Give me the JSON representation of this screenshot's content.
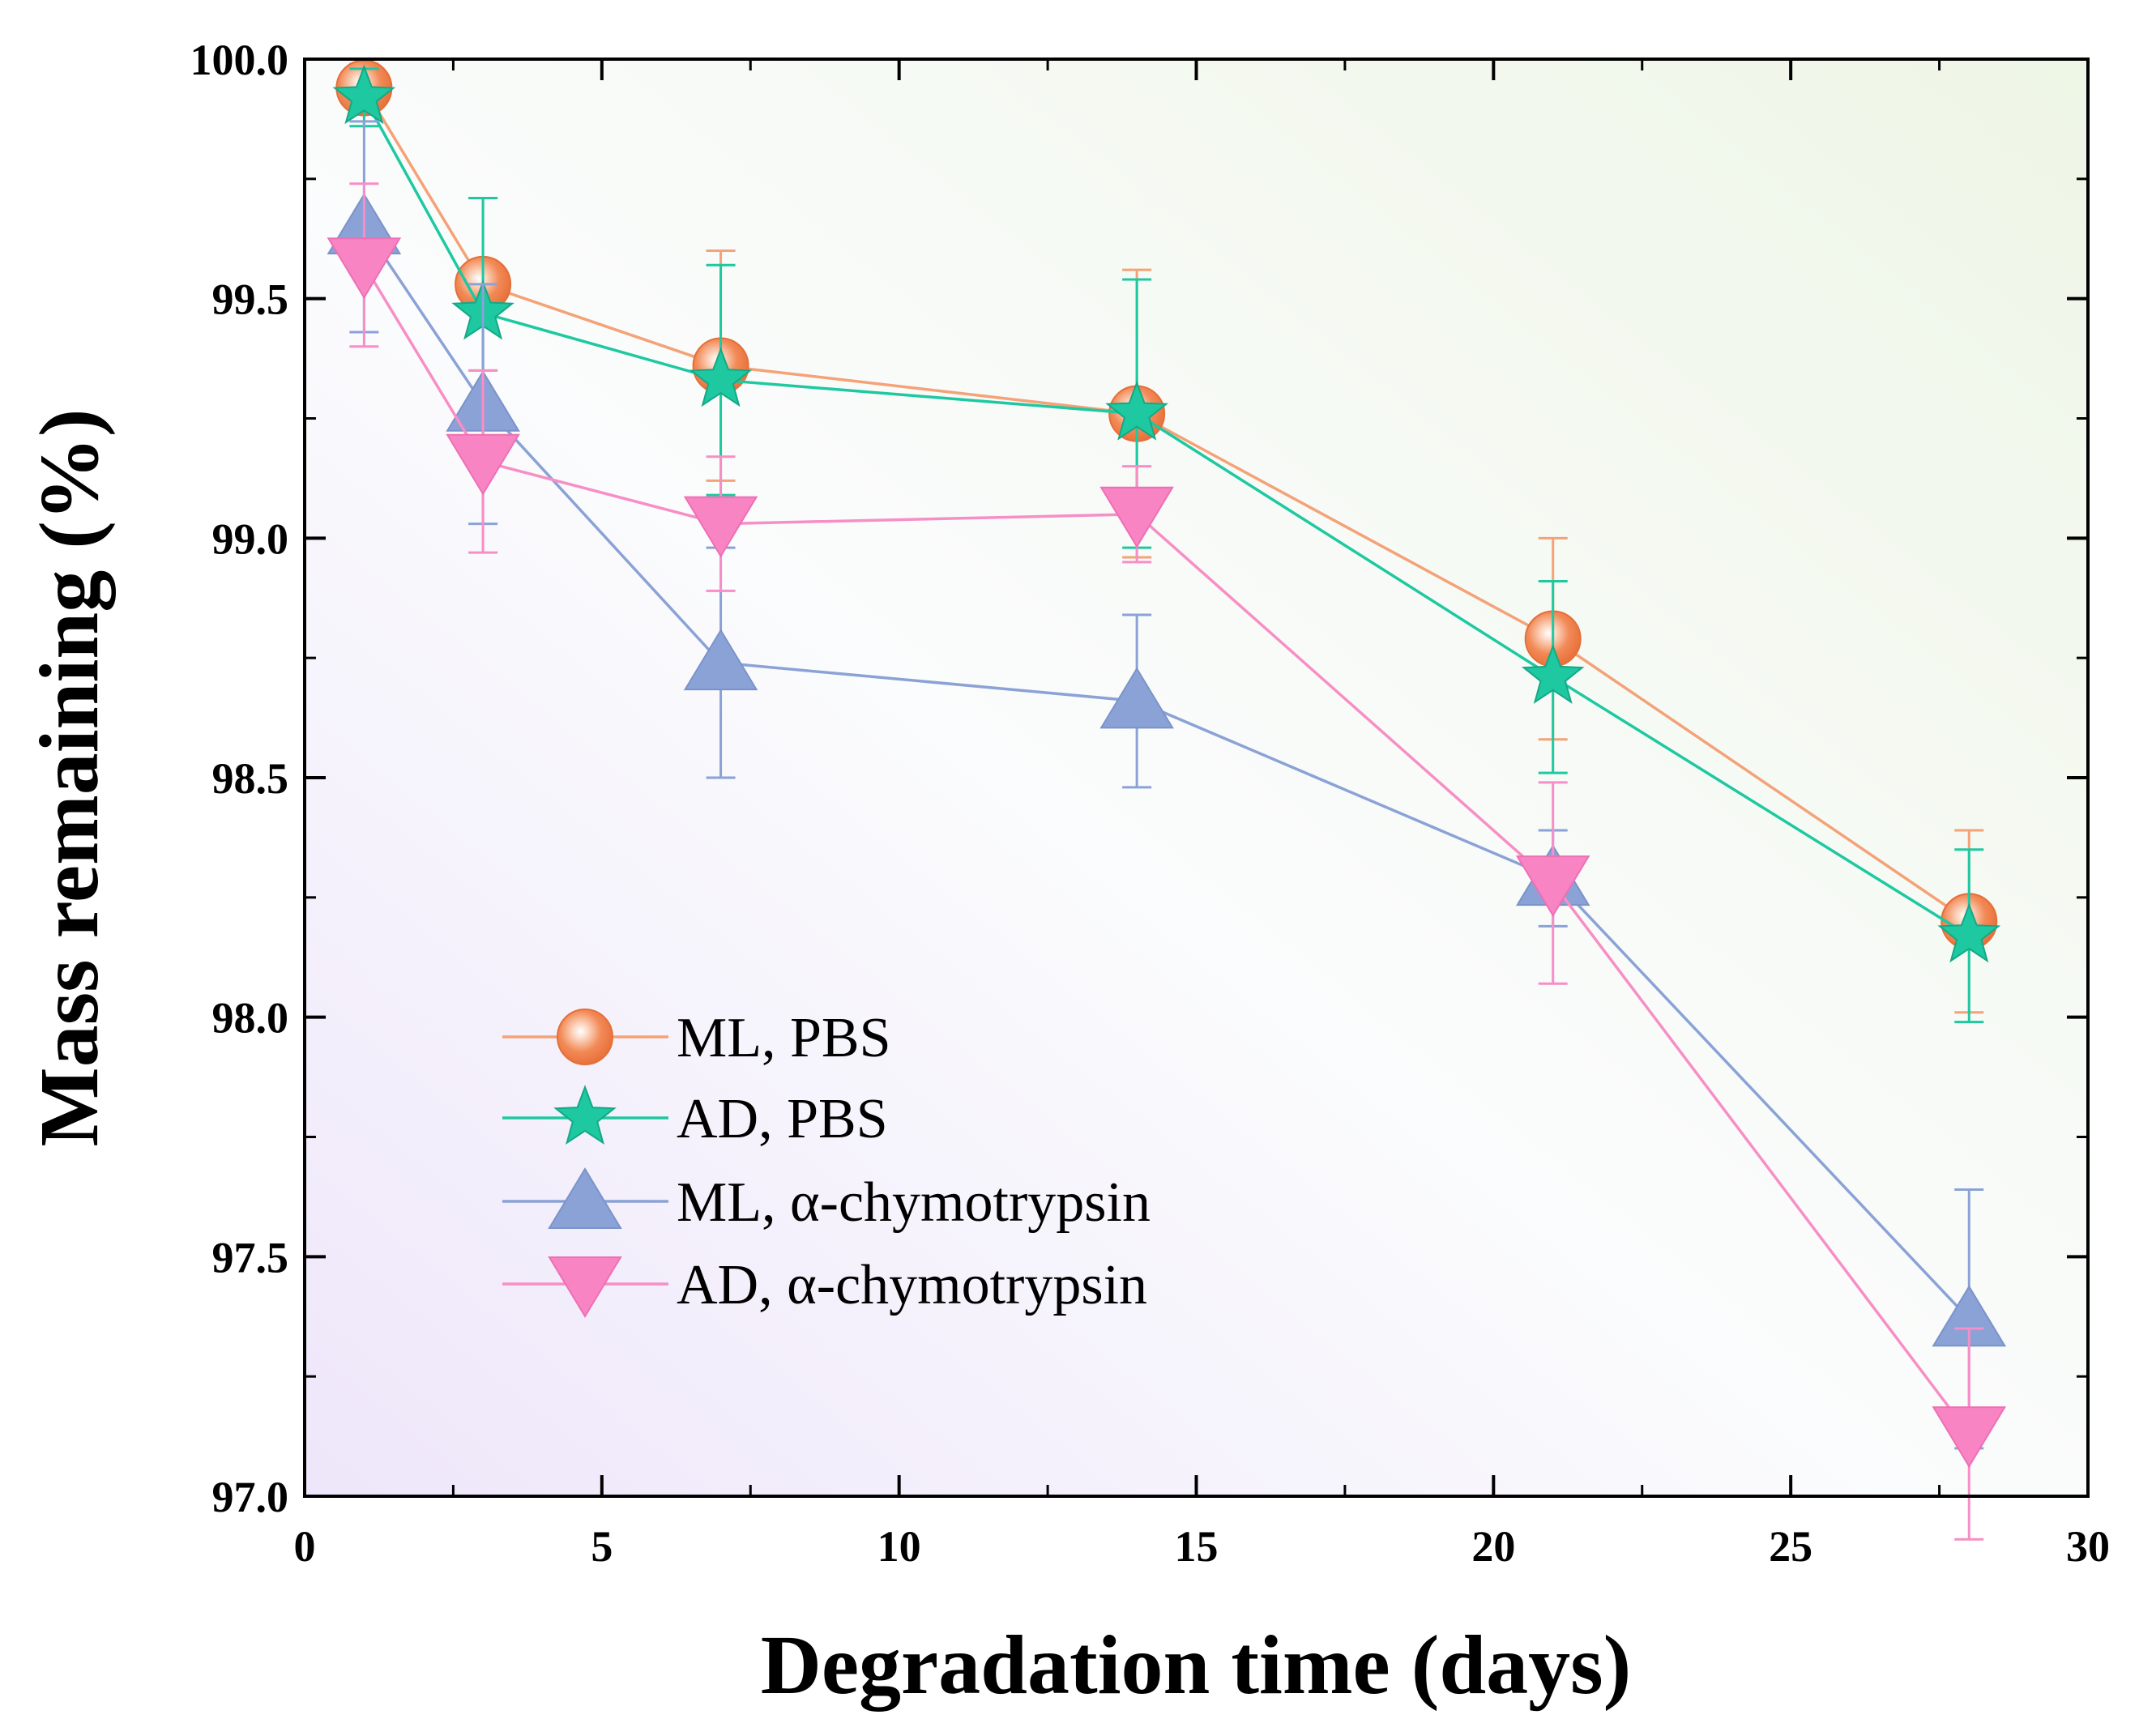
{
  "chart_data": {
    "type": "line",
    "title": "",
    "xlabel": "Degradation time (days)",
    "ylabel": "Mass remaining (%)",
    "xlim": [
      0,
      30
    ],
    "ylim": [
      97.0,
      100.0
    ],
    "x_ticks": [
      0,
      5,
      10,
      15,
      20,
      25,
      30
    ],
    "x_tick_labels": [
      "0",
      "5",
      "10",
      "15",
      "20",
      "25",
      "30"
    ],
    "y_ticks": [
      97.0,
      97.5,
      98.0,
      98.5,
      99.0,
      99.5,
      100.0
    ],
    "y_tick_labels": [
      "97.0",
      "97.5",
      "98.0",
      "98.5",
      "99.0",
      "99.5",
      "100.0"
    ],
    "grid": false,
    "legend_position": "bottom-left",
    "x": [
      1,
      3,
      7,
      14,
      21,
      28
    ],
    "series": [
      {
        "name": "ML, PBS",
        "marker": "sphere",
        "color": "#f28a57",
        "line_color": "#f4a277",
        "values": [
          99.94,
          99.53,
          99.36,
          99.26,
          98.79,
          98.2
        ],
        "errors": [
          0.05,
          0.18,
          0.24,
          0.3,
          0.21,
          0.19
        ]
      },
      {
        "name": "AD, PBS",
        "marker": "star",
        "color": "#1ec8a0",
        "line_color": "#1ec8a0",
        "values": [
          99.92,
          99.47,
          99.33,
          99.26,
          98.71,
          98.17
        ],
        "errors": [
          0.06,
          0.24,
          0.24,
          0.28,
          0.2,
          0.18
        ]
      },
      {
        "name": "ML, α-chymotrypsin",
        "marker": "triangle-up",
        "color": "#8aa2d6",
        "line_color": "#8aa2d6",
        "values": [
          99.65,
          99.28,
          98.74,
          98.66,
          98.29,
          97.37
        ],
        "errors": [
          0.22,
          0.25,
          0.24,
          0.18,
          0.1,
          0.27
        ]
      },
      {
        "name": "AD, α-chymotrypsin",
        "marker": "triangle-down",
        "color": "#f884c4",
        "line_color": "#f78ec6",
        "values": [
          99.57,
          99.16,
          99.03,
          99.05,
          98.28,
          97.13
        ],
        "errors": [
          0.17,
          0.19,
          0.14,
          0.1,
          0.21,
          0.22
        ]
      }
    ]
  }
}
